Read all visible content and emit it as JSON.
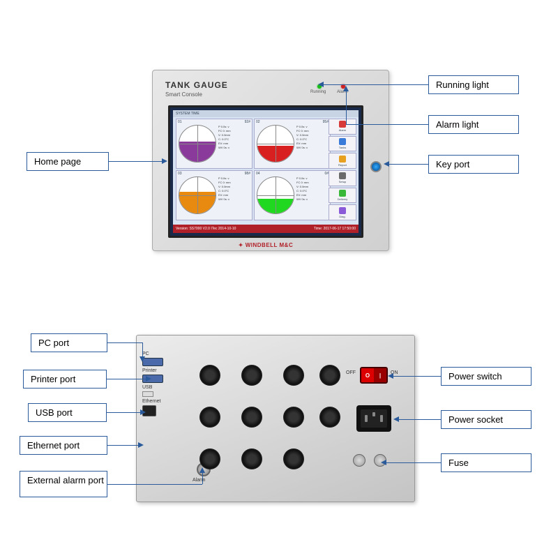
{
  "top_labels": {
    "home_page": "Home page",
    "running_light": "Running light",
    "alarm_light": "Alarm light",
    "key_port": "Key port"
  },
  "bottom_labels": {
    "pc_port": "PC port",
    "printer_port": "Printer port",
    "usb_port": "USB port",
    "ethernet_port": "Ethernet port",
    "external_alarm": "External alarm port",
    "power_switch": "Power switch",
    "power_socket": "Power socket",
    "fuse": "Fuse"
  },
  "device": {
    "title": "TANK GAUGE",
    "subtitle": "Smart Console",
    "running": "Running",
    "alarm": "Alarm",
    "brand": "✦ WINDBELL M&C"
  },
  "screen": {
    "header": "SYSTEM TIME",
    "footer_left": "Version: SS7000 V2.0 ITec 2014-10-10",
    "footer_right": "Time: 2017-06-17 17:50:00",
    "side_buttons": [
      "Alarm",
      "Tanks",
      "Report",
      "Setup",
      "Delivery",
      "Diag."
    ],
    "gauges": [
      {
        "id": "01",
        "name": "92#",
        "color": "#8a3a9a",
        "level": 0.55,
        "lines": [
          "P 0.0s: v",
          "FC 0: mm",
          "V: 0.0mm",
          "C: 0.0°C",
          "EV: mm",
          "WV 0s: v"
        ]
      },
      {
        "id": "02",
        "name": "95#",
        "color": "#d82020",
        "level": 0.45,
        "lines": [
          "P 0.0s: v",
          "FC 0: mm",
          "V: 0.0mm",
          "C: 0.0°C",
          "EV: mm",
          "WV 0s: v"
        ]
      },
      {
        "id": "03",
        "name": "98#",
        "color": "#e88a10",
        "level": 0.6,
        "lines": [
          "P 0.0s: v",
          "FC 0: mm",
          "V: 0.0mm",
          "C: 0.0°C",
          "EV: mm",
          "WV 0s: v"
        ]
      },
      {
        "id": "04",
        "name": "0#",
        "color": "#20d820",
        "level": 0.4,
        "lines": [
          "P 0.0s: v",
          "FC 0: mm",
          "V: 0.0mm",
          "C: 0.0°C",
          "EV: mm",
          "WV 0s: v"
        ]
      }
    ]
  },
  "back": {
    "pc": "PC",
    "printer": "Printer",
    "usb": "USB",
    "ethernet": "Ethernet",
    "alarm": "Alarm",
    "off": "OFF",
    "on": "ON"
  },
  "colors": {
    "label_border": "#2a5a9a",
    "arrow": "#2a5a9a"
  }
}
